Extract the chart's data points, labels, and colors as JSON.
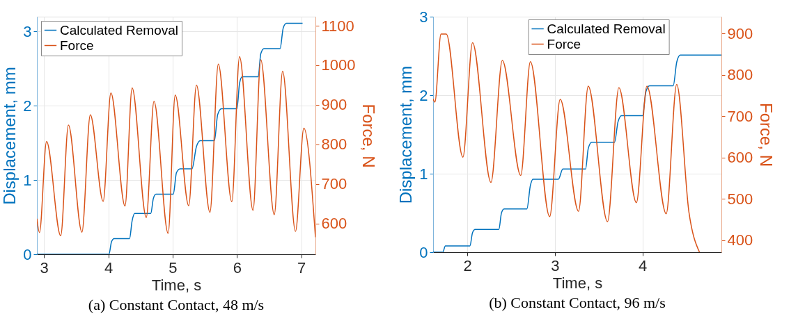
{
  "chart_data": [
    {
      "type": "line",
      "title": "(a) Constant Contact, 48 m/s",
      "xlabel": "Time, s",
      "ylabel": "Displacement, mm",
      "y2label": "Force, N",
      "xlim": [
        2.89,
        7.22
      ],
      "xticks": [
        3,
        4,
        5,
        6,
        7
      ],
      "ylim": [
        0,
        3.2
      ],
      "yticks": [
        0,
        1,
        2,
        3
      ],
      "y2lim": [
        522,
        1123
      ],
      "y2ticks": [
        600,
        700,
        800,
        900,
        1000,
        1100
      ],
      "grid": true,
      "legend": "top left",
      "series": [
        {
          "name": "Calculated Removal",
          "color": "#0072bd",
          "x": [
            2.89,
            4.01,
            4.05,
            4.09,
            4.33,
            4.37,
            4.41,
            4.66,
            4.7,
            4.74,
            5.01,
            5.06,
            5.12,
            5.3,
            5.37,
            5.43,
            5.65,
            5.7,
            5.76,
            6.0,
            6.04,
            6.08,
            6.33,
            6.37,
            6.42,
            6.67,
            6.72,
            6.77,
            7.02
          ],
          "values": [
            0,
            0,
            0.17,
            0.21,
            0.21,
            0.45,
            0.55,
            0.55,
            0.75,
            0.81,
            0.81,
            1.1,
            1.15,
            1.15,
            1.45,
            1.53,
            1.53,
            1.88,
            1.96,
            1.96,
            2.3,
            2.39,
            2.39,
            2.7,
            2.77,
            2.77,
            3.05,
            3.11,
            3.11
          ]
        },
        {
          "name": "Force",
          "color": "#d95319",
          "axis": "y2",
          "x": [
            2.89,
            2.93,
            3.04,
            3.26,
            3.38,
            3.59,
            3.72,
            3.92,
            4.04,
            4.26,
            4.37,
            4.59,
            4.71,
            4.93,
            5.04,
            5.25,
            5.37,
            5.58,
            5.71,
            5.92,
            6.04,
            6.25,
            6.37,
            6.58,
            6.71,
            6.91,
            7.04,
            7.22
          ],
          "values": [
            612,
            577,
            807,
            569,
            849,
            578,
            875,
            656,
            930,
            644,
            943,
            615,
            909,
            575,
            925,
            645,
            950,
            628,
            1003,
            655,
            1022,
            633,
            1014,
            622,
            985,
            580,
            841,
            565
          ]
        }
      ]
    },
    {
      "type": "line",
      "title": "(b) Constant Contact, 96 m/s",
      "xlabel": "Time, s",
      "ylabel": "Displacement, mm",
      "y2label": "Force, N",
      "xlim": [
        1.61,
        4.9
      ],
      "xticks": [
        2,
        3,
        4
      ],
      "ylim": [
        0,
        3
      ],
      "yticks": [
        0,
        1,
        2,
        3
      ],
      "y2lim": [
        371,
        941
      ],
      "y2ticks": [
        400,
        500,
        600,
        700,
        800,
        900
      ],
      "grid": true,
      "legend": "top",
      "series": [
        {
          "name": "Calculated Removal",
          "color": "#0072bd",
          "x": [
            1.61,
            1.72,
            1.75,
            2.03,
            2.06,
            2.09,
            2.36,
            2.39,
            2.42,
            2.68,
            2.72,
            2.75,
            3.04,
            3.09,
            3.35,
            3.38,
            3.42,
            3.68,
            3.72,
            3.76,
            4.0,
            4.04,
            4.08,
            4.35,
            4.39,
            4.43,
            4.9
          ],
          "values": [
            0,
            0,
            0.08,
            0.08,
            0.25,
            0.29,
            0.29,
            0.5,
            0.55,
            0.55,
            0.85,
            0.93,
            0.93,
            1.06,
            1.06,
            1.32,
            1.4,
            1.4,
            1.66,
            1.74,
            1.74,
            2.05,
            2.12,
            2.12,
            2.42,
            2.51,
            2.51
          ]
        },
        {
          "name": "Force",
          "color": "#d95319",
          "axis": "y2",
          "x": [
            1.61,
            1.63,
            1.7,
            1.76,
            1.95,
            2.06,
            2.27,
            2.4,
            2.61,
            2.72,
            2.94,
            3.06,
            3.27,
            3.38,
            3.6,
            3.73,
            3.93,
            4.05,
            4.27,
            4.39,
            4.53,
            4.65
          ],
          "values": [
            742,
            734,
            899,
            899,
            601,
            878,
            540,
            835,
            557,
            832,
            457,
            741,
            470,
            773,
            445,
            769,
            491,
            773,
            464,
            777,
            467,
            371
          ]
        }
      ]
    }
  ]
}
